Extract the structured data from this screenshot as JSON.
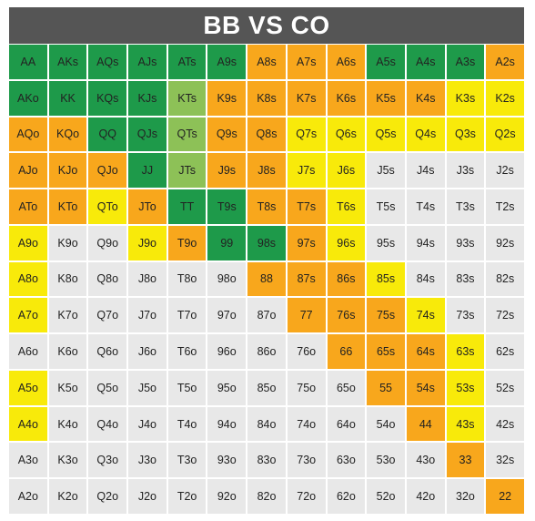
{
  "title": "BB VS CO",
  "colors": {
    "dark_green": "#1e9a4a",
    "green": "#40ac4f",
    "light_green": "#8dc157",
    "orange": "#f8a71c",
    "yellow": "#f8ea0a",
    "gray": "#e8e8e8",
    "title_bg": "#555555"
  },
  "legend_codes": {
    "D": "dark_green",
    "G": "green",
    "L": "light_green",
    "O": "orange",
    "Y": "yellow",
    "N": "gray"
  },
  "rows": [
    {
      "hands": [
        "AA",
        "AKs",
        "AQs",
        "AJs",
        "ATs",
        "A9s",
        "A8s",
        "A7s",
        "A6s",
        "A5s",
        "A4s",
        "A3s",
        "A2s"
      ],
      "colors": [
        "D",
        "D",
        "D",
        "D",
        "D",
        "D",
        "O",
        "O",
        "O",
        "D",
        "D",
        "D",
        "O"
      ]
    },
    {
      "hands": [
        "AKo",
        "KK",
        "KQs",
        "KJs",
        "KTs",
        "K9s",
        "K8s",
        "K7s",
        "K6s",
        "K5s",
        "K4s",
        "K3s",
        "K2s"
      ],
      "colors": [
        "D",
        "D",
        "D",
        "D",
        "L",
        "O",
        "O",
        "O",
        "O",
        "O",
        "O",
        "Y",
        "Y"
      ]
    },
    {
      "hands": [
        "AQo",
        "KQo",
        "QQ",
        "QJs",
        "QTs",
        "Q9s",
        "Q8s",
        "Q7s",
        "Q6s",
        "Q5s",
        "Q4s",
        "Q3s",
        "Q2s"
      ],
      "colors": [
        "O",
        "O",
        "D",
        "D",
        "L",
        "O",
        "O",
        "Y",
        "Y",
        "Y",
        "Y",
        "Y",
        "Y"
      ]
    },
    {
      "hands": [
        "AJo",
        "KJo",
        "QJo",
        "JJ",
        "JTs",
        "J9s",
        "J8s",
        "J7s",
        "J6s",
        "J5s",
        "J4s",
        "J3s",
        "J2s"
      ],
      "colors": [
        "O",
        "O",
        "O",
        "D",
        "L",
        "O",
        "O",
        "Y",
        "Y",
        "N",
        "N",
        "N",
        "N"
      ]
    },
    {
      "hands": [
        "ATo",
        "KTo",
        "QTo",
        "JTo",
        "TT",
        "T9s",
        "T8s",
        "T7s",
        "T6s",
        "T5s",
        "T4s",
        "T3s",
        "T2s"
      ],
      "colors": [
        "O",
        "O",
        "Y",
        "O",
        "D",
        "D",
        "O",
        "O",
        "Y",
        "N",
        "N",
        "N",
        "N"
      ]
    },
    {
      "hands": [
        "A9o",
        "K9o",
        "Q9o",
        "J9o",
        "T9o",
        "99",
        "98s",
        "97s",
        "96s",
        "95s",
        "94s",
        "93s",
        "92s"
      ],
      "colors": [
        "Y",
        "N",
        "N",
        "Y",
        "O",
        "D",
        "D",
        "O",
        "Y",
        "N",
        "N",
        "N",
        "N"
      ]
    },
    {
      "hands": [
        "A8o",
        "K8o",
        "Q8o",
        "J8o",
        "T8o",
        "98o",
        "88",
        "87s",
        "86s",
        "85s",
        "84s",
        "83s",
        "82s"
      ],
      "colors": [
        "Y",
        "N",
        "N",
        "N",
        "N",
        "N",
        "O",
        "O",
        "O",
        "Y",
        "N",
        "N",
        "N"
      ]
    },
    {
      "hands": [
        "A7o",
        "K7o",
        "Q7o",
        "J7o",
        "T7o",
        "97o",
        "87o",
        "77",
        "76s",
        "75s",
        "74s",
        "73s",
        "72s"
      ],
      "colors": [
        "Y",
        "N",
        "N",
        "N",
        "N",
        "N",
        "N",
        "O",
        "O",
        "O",
        "Y",
        "N",
        "N"
      ]
    },
    {
      "hands": [
        "A6o",
        "K6o",
        "Q6o",
        "J6o",
        "T6o",
        "96o",
        "86o",
        "76o",
        "66",
        "65s",
        "64s",
        "63s",
        "62s"
      ],
      "colors": [
        "N",
        "N",
        "N",
        "N",
        "N",
        "N",
        "N",
        "N",
        "O",
        "O",
        "O",
        "Y",
        "N"
      ]
    },
    {
      "hands": [
        "A5o",
        "K5o",
        "Q5o",
        "J5o",
        "T5o",
        "95o",
        "85o",
        "75o",
        "65o",
        "55",
        "54s",
        "53s",
        "52s"
      ],
      "colors": [
        "Y",
        "N",
        "N",
        "N",
        "N",
        "N",
        "N",
        "N",
        "N",
        "O",
        "O",
        "Y",
        "N"
      ]
    },
    {
      "hands": [
        "A4o",
        "K4o",
        "Q4o",
        "J4o",
        "T4o",
        "94o",
        "84o",
        "74o",
        "64o",
        "54o",
        "44",
        "43s",
        "42s"
      ],
      "colors": [
        "Y",
        "N",
        "N",
        "N",
        "N",
        "N",
        "N",
        "N",
        "N",
        "N",
        "O",
        "Y",
        "N"
      ]
    },
    {
      "hands": [
        "A3o",
        "K3o",
        "Q3o",
        "J3o",
        "T3o",
        "93o",
        "83o",
        "73o",
        "63o",
        "53o",
        "43o",
        "33",
        "32s"
      ],
      "colors": [
        "N",
        "N",
        "N",
        "N",
        "N",
        "N",
        "N",
        "N",
        "N",
        "N",
        "N",
        "O",
        "N"
      ]
    },
    {
      "hands": [
        "A2o",
        "K2o",
        "Q2o",
        "J2o",
        "T2o",
        "92o",
        "82o",
        "72o",
        "62o",
        "52o",
        "42o",
        "32o",
        "22"
      ],
      "colors": [
        "N",
        "N",
        "N",
        "N",
        "N",
        "N",
        "N",
        "N",
        "N",
        "N",
        "N",
        "N",
        "O"
      ]
    }
  ]
}
